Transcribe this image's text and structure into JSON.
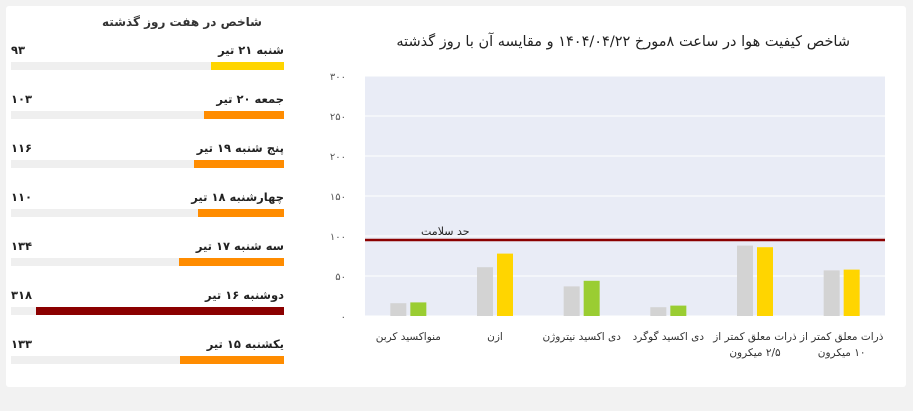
{
  "left_panel": {
    "title": "شاخص در هفت روز گذشته",
    "days": [
      {
        "label": "شنبه ۲۱ تیر",
        "value": "۹۳",
        "number": 93,
        "color": "#ffd500"
      },
      {
        "label": "جمعه ۲۰ تیر",
        "value": "۱۰۳",
        "number": 103,
        "color": "#ff8c00"
      },
      {
        "label": "پنج شنبه ۱۹ تیر",
        "value": "۱۱۶",
        "number": 116,
        "color": "#ff8c00"
      },
      {
        "label": "چهارشنبه ۱۸ تیر",
        "value": "۱۱۰",
        "number": 110,
        "color": "#ff8c00"
      },
      {
        "label": "سه شنبه ۱۷ تیر",
        "value": "۱۳۴",
        "number": 134,
        "color": "#ff8c00"
      },
      {
        "label": "دوشنبه ۱۶ تیر",
        "value": "۳۱۸",
        "number": 318,
        "color": "#8b0000"
      },
      {
        "label": "یکشنبه ۱۵ تیر",
        "value": "۱۳۳",
        "number": 133,
        "color": "#ff8c00"
      }
    ]
  },
  "chart_data": {
    "type": "bar",
    "title": "شاخص کیفیت هوا در ساعت ۸مورخ ۱۴۰۴/۰۴/۲۲ و مقایسه آن با روز گذشته",
    "ylim": [
      0,
      300
    ],
    "y_ticks": [
      0,
      50,
      100,
      150,
      200,
      250,
      300
    ],
    "y_tick_labels": [
      "۰",
      "۵۰",
      "۱۰۰",
      "۱۵۰",
      "۲۰۰",
      "۲۵۰",
      "۳۰۰"
    ],
    "categories": [
      [
        "ذرات معلق کمتر از",
        "۱۰ میکرون"
      ],
      [
        "ذرات معلق کمتر از",
        "۲/۵ میکرون"
      ],
      [
        "دی اکسید گوگرد"
      ],
      [
        "دی اکسید نیتروژن"
      ],
      [
        "ازن"
      ],
      [
        "منواکسید کربن"
      ]
    ],
    "previous": {
      "color": "#d3d3d3",
      "values": [
        57,
        88,
        11,
        37,
        61,
        16
      ]
    },
    "current": {
      "values": [
        58,
        86,
        13,
        44,
        78,
        17
      ],
      "colors": [
        "#ffd500",
        "#ffd500",
        "#9acd32",
        "#9acd32",
        "#ffd500",
        "#9acd32"
      ]
    },
    "threshold": {
      "value": 95,
      "label": "حد سلامت",
      "color": "#8b0000"
    },
    "plot_background": "#e9ecf6",
    "grid": true
  }
}
